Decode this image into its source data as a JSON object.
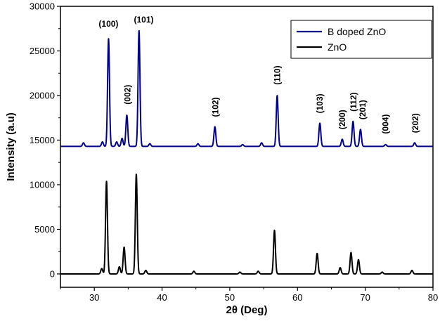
{
  "chart_data": {
    "type": "line",
    "xlabel": "2θ (Deg)",
    "ylabel": "Intensity (a.u)",
    "xlim": [
      25,
      80
    ],
    "ylim": [
      -1500,
      30000
    ],
    "xticks": [
      30,
      40,
      50,
      60,
      70,
      80
    ],
    "yticks": [
      0,
      5000,
      10000,
      15000,
      20000,
      25000,
      30000
    ],
    "grid": false,
    "legend_position": "top-right",
    "series": [
      {
        "name": "B doped ZnO",
        "color": "#00008B",
        "baseline": 14300,
        "peaks": [
          {
            "x": 28.4,
            "y": 14700
          },
          {
            "x": 31.2,
            "y": 14800
          },
          {
            "x": 32.1,
            "y": 26400
          },
          {
            "x": 33.3,
            "y": 14800
          },
          {
            "x": 34.1,
            "y": 15200
          },
          {
            "x": 34.8,
            "y": 17800
          },
          {
            "x": 36.6,
            "y": 27300
          },
          {
            "x": 38.2,
            "y": 14600
          },
          {
            "x": 45.3,
            "y": 14600
          },
          {
            "x": 47.8,
            "y": 16500
          },
          {
            "x": 51.9,
            "y": 14500
          },
          {
            "x": 54.7,
            "y": 14700
          },
          {
            "x": 57.0,
            "y": 20000
          },
          {
            "x": 63.3,
            "y": 16900
          },
          {
            "x": 66.6,
            "y": 15100
          },
          {
            "x": 68.2,
            "y": 17100
          },
          {
            "x": 69.3,
            "y": 16200
          },
          {
            "x": 73.0,
            "y": 14500
          },
          {
            "x": 77.3,
            "y": 14700
          }
        ]
      },
      {
        "name": "ZnO",
        "color": "#000000",
        "baseline": 0,
        "peaks": [
          {
            "x": 31.1,
            "y": 600
          },
          {
            "x": 31.8,
            "y": 10400
          },
          {
            "x": 33.7,
            "y": 800
          },
          {
            "x": 34.4,
            "y": 3000
          },
          {
            "x": 36.2,
            "y": 11200
          },
          {
            "x": 37.6,
            "y": 400
          },
          {
            "x": 44.7,
            "y": 300
          },
          {
            "x": 51.5,
            "y": 200
          },
          {
            "x": 54.2,
            "y": 300
          },
          {
            "x": 56.6,
            "y": 4900
          },
          {
            "x": 62.9,
            "y": 2300
          },
          {
            "x": 66.3,
            "y": 700
          },
          {
            "x": 67.9,
            "y": 2400
          },
          {
            "x": 69.0,
            "y": 1600
          },
          {
            "x": 72.5,
            "y": 200
          },
          {
            "x": 76.9,
            "y": 400
          }
        ]
      }
    ],
    "annotations": [
      {
        "text": "(100)",
        "x": 32.1,
        "y": 27700,
        "rotate": false
      },
      {
        "text": "(101)",
        "x": 37.3,
        "y": 28200,
        "rotate": false
      },
      {
        "text": "(002)",
        "x": 34.9,
        "y": 19000,
        "rotate": true
      },
      {
        "text": "(102)",
        "x": 47.9,
        "y": 17600,
        "rotate": true
      },
      {
        "text": "(110)",
        "x": 57.0,
        "y": 21200,
        "rotate": true
      },
      {
        "text": "(103)",
        "x": 63.3,
        "y": 18000,
        "rotate": true
      },
      {
        "text": "(200)",
        "x": 66.6,
        "y": 16200,
        "rotate": true
      },
      {
        "text": "(112)",
        "x": 68.3,
        "y": 18200,
        "rotate": true
      },
      {
        "text": "(201)",
        "x": 69.6,
        "y": 17300,
        "rotate": true
      },
      {
        "text": "(004)",
        "x": 73.0,
        "y": 15700,
        "rotate": true
      },
      {
        "text": "(202)",
        "x": 77.4,
        "y": 15800,
        "rotate": true
      }
    ]
  }
}
